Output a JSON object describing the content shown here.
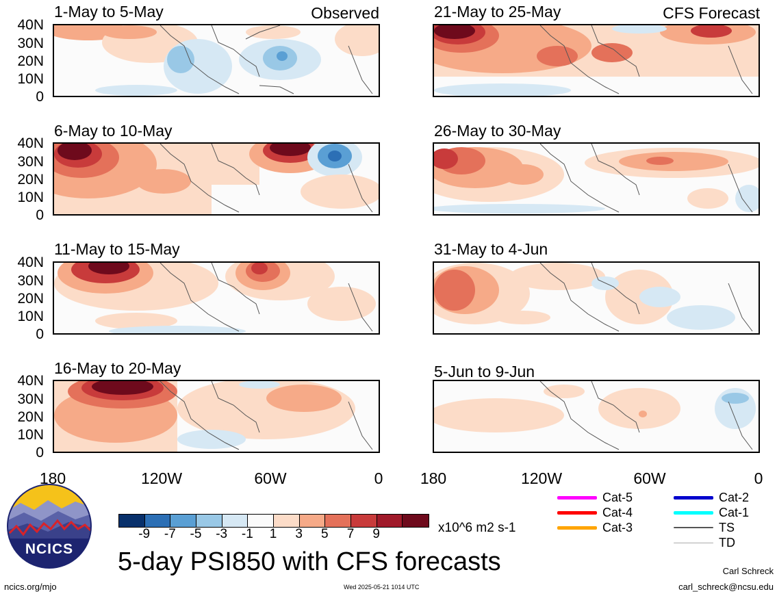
{
  "header": {
    "observed_label": "Observed",
    "forecast_label": "CFS Forecast"
  },
  "panels": [
    {
      "title": "1-May to 5-May"
    },
    {
      "title": "6-May to 10-May"
    },
    {
      "title": "11-May to 15-May"
    },
    {
      "title": "16-May to 20-May"
    },
    {
      "title": "21-May to 25-May"
    },
    {
      "title": "26-May to 30-May"
    },
    {
      "title": "31-May to 4-Jun"
    },
    {
      "title": "5-Jun to 9-Jun"
    }
  ],
  "lat_labels": [
    "40N",
    "30N",
    "20N",
    "10N",
    "0"
  ],
  "lon_labels": [
    "180",
    "120W",
    "60W",
    "0"
  ],
  "colorbar": {
    "colors": [
      "#08306b",
      "#2c6fb5",
      "#5a9fd4",
      "#99c8e6",
      "#d6e8f4",
      "#fafafa",
      "#fcdcc8",
      "#f6aa88",
      "#e4715a",
      "#c83b3b",
      "#a01a2a",
      "#6e0a1c"
    ],
    "ticks": [
      "-9",
      "-7",
      "-5",
      "-3",
      "-1",
      "1",
      "3",
      "5",
      "7",
      "9"
    ],
    "units": "x10^6 m2 s-1"
  },
  "legend": [
    {
      "label": "Cat-5",
      "color": "#ff00ff"
    },
    {
      "label": "Cat-4",
      "color": "#ff0000"
    },
    {
      "label": "Cat-3",
      "color": "#ffa500"
    },
    {
      "label": "Cat-2",
      "color": "#0000cd"
    },
    {
      "label": "Cat-1",
      "color": "#00ffff"
    },
    {
      "label": "TS",
      "color": "#555555"
    },
    {
      "label": "TD",
      "color": "#aaaaaa"
    }
  ],
  "logo": {
    "text": "NCICS"
  },
  "main_title": "5-day PSI850 with CFS forecasts",
  "footer": {
    "url": "ncics.org/mjo",
    "timestamp": "Wed 2025-05-21 1014 UTC",
    "author": "Carl Schreck",
    "email": "carl_schreck@ncsu.edu"
  }
}
